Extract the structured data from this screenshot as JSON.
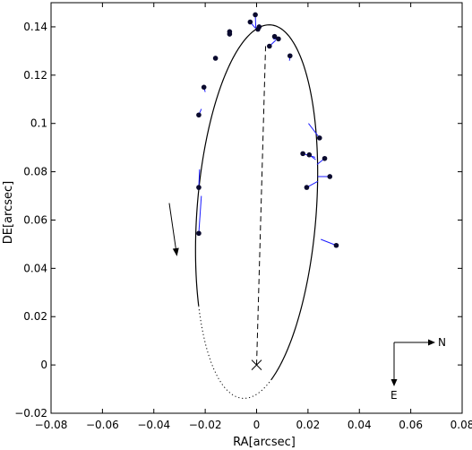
{
  "chart_data": {
    "type": "scatter",
    "xlabel": "RA[arcsec]",
    "ylabel": "DE[arcsec]",
    "xlim": [
      -0.08,
      0.08
    ],
    "ylim": [
      -0.02,
      0.15
    ],
    "x_ticks": [
      -0.08,
      -0.06,
      -0.04,
      -0.02,
      0,
      0.02,
      0.04,
      0.06,
      0.08
    ],
    "x_tick_labels": [
      "−0.08",
      "−0.06",
      "−0.04",
      "−0.02",
      "0",
      "0.02",
      "0.04",
      "0.06",
      "0.08"
    ],
    "y_ticks": [
      -0.02,
      0,
      0.02,
      0.04,
      0.06,
      0.08,
      0.1,
      0.12,
      0.14
    ],
    "y_tick_labels": [
      "−0.02",
      "0",
      "0.02",
      "0.04",
      "0.06",
      "0.08",
      "0.1",
      "0.12",
      "0.14"
    ],
    "grid": false,
    "compass": {
      "north_label": "N",
      "east_label": "E"
    },
    "primary_star": {
      "x": 0,
      "y": 0,
      "marker": "x"
    },
    "orbit": {
      "center": [
        0.0,
        0.0635
      ],
      "a": 0.0775,
      "b": 0.0232,
      "rotation_deg": 86.0,
      "color": "#000000"
    },
    "line_of_nodes": {
      "from": [
        0,
        0
      ],
      "to": [
        0.0035,
        0.132
      ],
      "style": "dashed"
    },
    "motion_arrow": {
      "from": [
        -0.034,
        0.067
      ],
      "to": [
        -0.031,
        0.045
      ]
    },
    "observations": {
      "marker_color": "#0a0a2e",
      "residual_color": "#1a1aff",
      "points": [
        {
          "x": -0.0005,
          "y": 0.145,
          "fx": -0.0003,
          "fy": 0.1395
        },
        {
          "x": -0.0025,
          "y": 0.142,
          "fx": -0.0005,
          "fy": 0.1395
        },
        {
          "x": 0.001,
          "y": 0.14,
          "fx": 0.0001,
          "fy": 0.1395
        },
        {
          "x": 0.0005,
          "y": 0.139,
          "fx": 0.0002,
          "fy": 0.1392
        },
        {
          "x": -0.0105,
          "y": 0.138,
          "fx": -0.0103,
          "fy": 0.138
        },
        {
          "x": -0.0105,
          "y": 0.137,
          "fx": -0.0103,
          "fy": 0.1375
        },
        {
          "x": 0.007,
          "y": 0.136,
          "fx": 0.0065,
          "fy": 0.1352
        },
        {
          "x": 0.0085,
          "y": 0.135,
          "fx": 0.0065,
          "fy": 0.135
        },
        {
          "x": 0.005,
          "y": 0.132,
          "fx": 0.0075,
          "fy": 0.1345
        },
        {
          "x": -0.016,
          "y": 0.127,
          "fx": -0.0155,
          "fy": 0.1268
        },
        {
          "x": 0.013,
          "y": 0.128,
          "fx": 0.0128,
          "fy": 0.126
        },
        {
          "x": -0.0205,
          "y": 0.115,
          "fx": -0.02,
          "fy": 0.113
        },
        {
          "x": -0.0225,
          "y": 0.1035,
          "fx": -0.0215,
          "fy": 0.106
        },
        {
          "x": 0.0245,
          "y": 0.094,
          "fx": 0.0202,
          "fy": 0.1
        },
        {
          "x": 0.018,
          "y": 0.0875,
          "fx": 0.0228,
          "fy": 0.086
        },
        {
          "x": 0.0205,
          "y": 0.087,
          "fx": 0.023,
          "fy": 0.085
        },
        {
          "x": 0.0265,
          "y": 0.0855,
          "fx": 0.0235,
          "fy": 0.083
        },
        {
          "x": 0.0285,
          "y": 0.078,
          "fx": 0.0238,
          "fy": 0.078
        },
        {
          "x": 0.0195,
          "y": 0.0735,
          "fx": 0.0238,
          "fy": 0.076
        },
        {
          "x": -0.0225,
          "y": 0.0735,
          "fx": -0.0222,
          "fy": 0.081
        },
        {
          "x": -0.0225,
          "y": 0.0545,
          "fx": -0.0215,
          "fy": 0.07
        },
        {
          "x": 0.031,
          "y": 0.0495,
          "fx": 0.025,
          "fy": 0.052
        }
      ]
    }
  }
}
